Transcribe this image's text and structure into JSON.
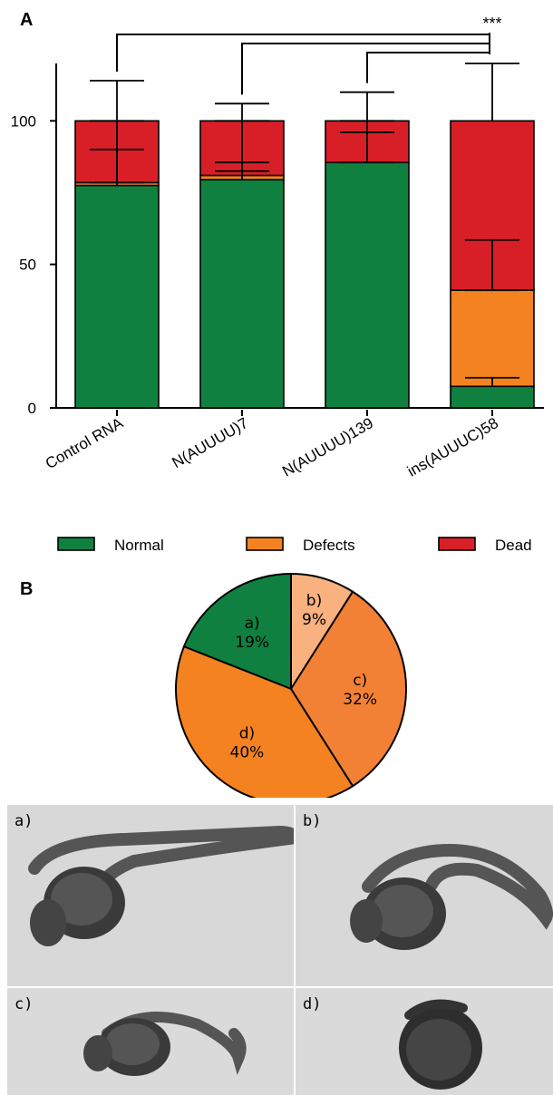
{
  "panel_a_letter": "A",
  "panel_b_letter": "B",
  "significance": "***",
  "legend": [
    {
      "label": "Normal",
      "color": "#108040"
    },
    {
      "label": "Defects",
      "color": "#f48221"
    },
    {
      "label": "Dead",
      "color": "#d81f27"
    }
  ],
  "chart_data": [
    {
      "type": "bar",
      "stacked": true,
      "categories": [
        "Control RNA",
        "N(AUUUU)7",
        "N(AUUUU)139",
        "ins(AUUUC)58"
      ],
      "series": [
        {
          "name": "Normal",
          "values": [
            77.5,
            79.5,
            85.5,
            7.5
          ],
          "color": "#108040"
        },
        {
          "name": "Defects",
          "values": [
            1.0,
            1.5,
            0.0,
            33.5
          ],
          "color": "#f48221"
        },
        {
          "name": "Dead",
          "values": [
            21.5,
            19.0,
            14.5,
            59.0
          ],
          "color": "#d81f27"
        }
      ],
      "error_bars": [
        {
          "category": "Control RNA",
          "cumulative_upper": [
            90,
            100,
            114
          ],
          "lower": 78.5
        },
        {
          "category": "N(AUUUU)7",
          "cumulative_upper": [
            85.5,
            100,
            106
          ],
          "lower": 82.5
        },
        {
          "category": "N(AUUUU)139",
          "cumulative_upper": [
            96,
            100,
            110
          ],
          "lower": 85.5
        },
        {
          "category": "ins(AUUUC)58",
          "cumulative_upper": [
            10.5,
            58.5,
            120
          ],
          "lower": 41
        }
      ],
      "yticks": [
        0,
        50,
        100
      ],
      "ylim": [
        0,
        120
      ],
      "xlabel": "",
      "ylabel": "",
      "legend_position": "bottom"
    },
    {
      "type": "pie",
      "slices": [
        {
          "label": "a)",
          "pct": "19%",
          "value": 19,
          "color": "#108040"
        },
        {
          "label": "b)",
          "pct": "9%",
          "value": 9,
          "color": "#f8b17f"
        },
        {
          "label": "c)",
          "pct": "32%",
          "value": 32,
          "color": "#f28135"
        },
        {
          "label": "d)",
          "pct": "40%",
          "value": 40,
          "color": "#f48221"
        }
      ]
    }
  ],
  "photos": [
    {
      "label": "a)"
    },
    {
      "label": "b)"
    },
    {
      "label": "c)"
    },
    {
      "label": "d)"
    }
  ]
}
